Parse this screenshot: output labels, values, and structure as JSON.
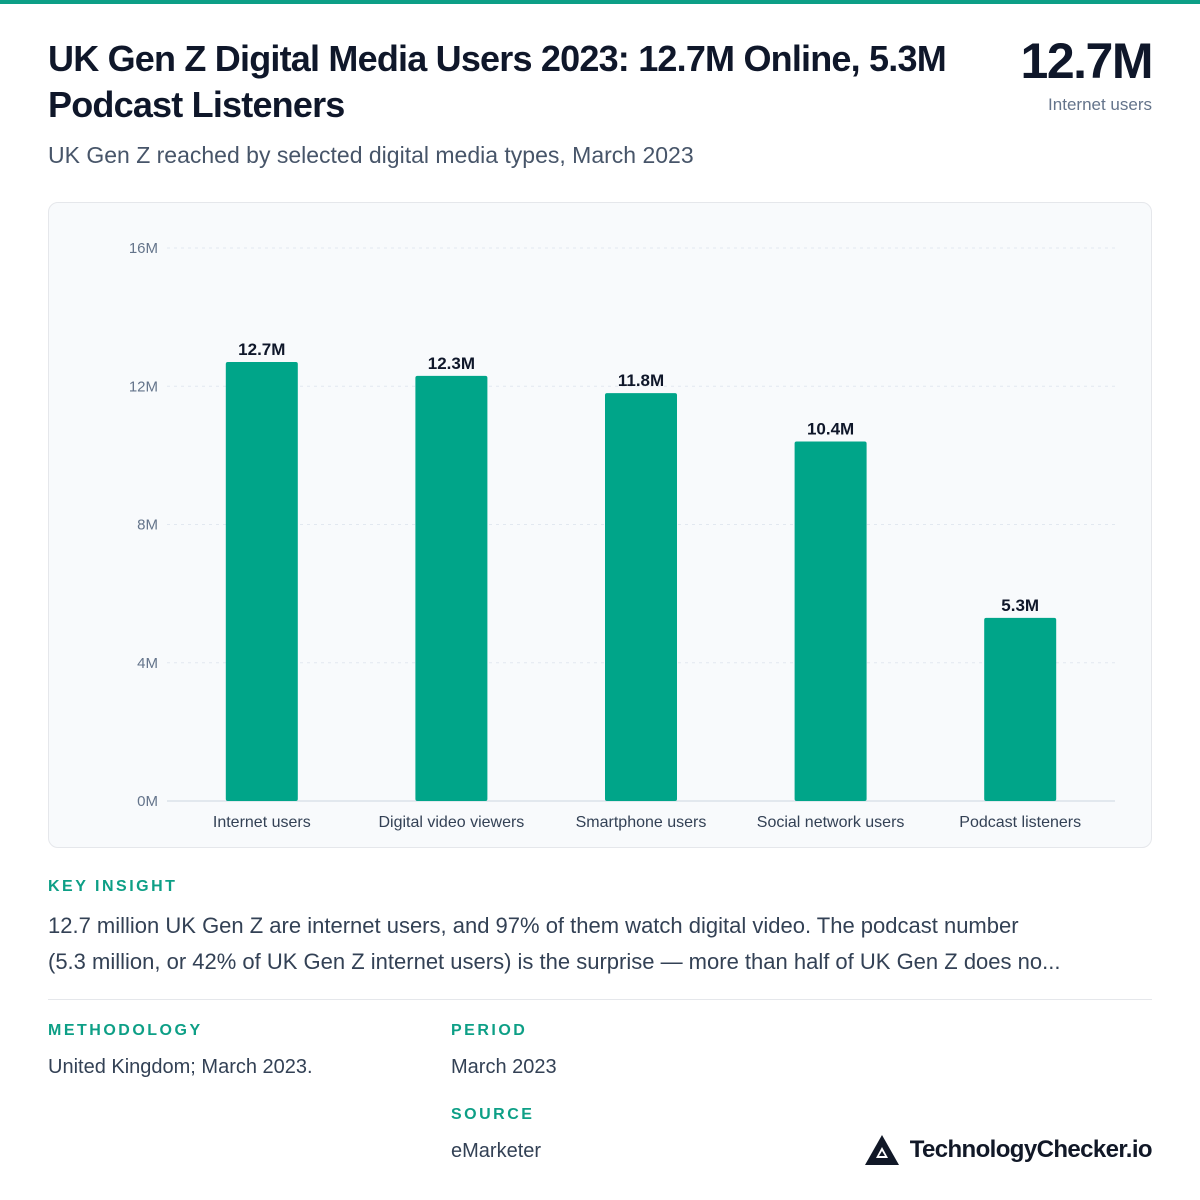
{
  "header": {
    "title": "UK Gen Z Digital Media Users 2023: 12.7M Online, 5.3M Podcast Listeners",
    "subtitle": "UK Gen Z reached by selected digital media types, March 2023",
    "kpi_value": "12.7M",
    "kpi_label": "Internet users"
  },
  "colors": {
    "accent": "#0d9f86",
    "bar": "#00a589",
    "text_dark": "#0f172a"
  },
  "chart_data": {
    "type": "bar",
    "categories": [
      "Internet users",
      "Digital video viewers",
      "Smartphone users",
      "Social network users",
      "Podcast listeners"
    ],
    "values": [
      12.7,
      12.3,
      11.8,
      10.4,
      5.3
    ],
    "value_labels": [
      "12.7M",
      "12.3M",
      "11.8M",
      "10.4M",
      "5.3M"
    ],
    "ylim": [
      0,
      16
    ],
    "yticks": [
      0,
      4,
      8,
      12,
      16
    ],
    "ytick_labels": [
      "0M",
      "4M",
      "8M",
      "12M",
      "16M"
    ],
    "grid": true,
    "title": "",
    "xlabel": "",
    "ylabel": ""
  },
  "insight": {
    "label": "KEY INSIGHT",
    "line1": "12.7 million UK Gen Z are internet users, and 97% of them watch digital video. The podcast number",
    "line2": "(5.3 million, or 42% of UK Gen Z internet users) is the surprise — more than half of UK Gen Z does no..."
  },
  "methodology": {
    "label": "METHODOLOGY",
    "text": "United Kingdom; March 2023."
  },
  "period": {
    "label": "PERIOD",
    "text": "March 2023"
  },
  "source": {
    "label": "SOURCE",
    "text": "eMarketer"
  },
  "brand": {
    "name": "TechnologyChecker.io",
    "icon": "triangle-logo-icon"
  }
}
